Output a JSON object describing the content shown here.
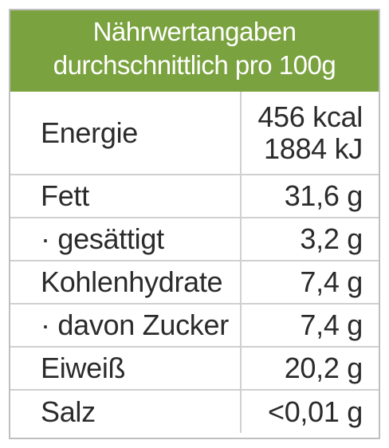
{
  "header": {
    "line1": "Nährwertangaben",
    "line2": "durchschnittlich pro 100g"
  },
  "energy": {
    "label": "Energie",
    "kcal": "456 kcal",
    "kj": "1884 kJ"
  },
  "rows": [
    {
      "label": "Fett",
      "value": "31,6 g"
    },
    {
      "label": "· gesättigt",
      "value": "3,2 g"
    },
    {
      "label": "Kohlenhydrate",
      "value": "7,4 g"
    },
    {
      "label": "· davon Zucker",
      "value": "7,4 g"
    },
    {
      "label": "Eiweiß",
      "value": "20,2 g"
    },
    {
      "label": "Salz",
      "value": "<0,01 g"
    }
  ],
  "colors": {
    "header_bg": "#7aa23f",
    "border": "#d0d0d0",
    "text": "#2b2b2b"
  }
}
